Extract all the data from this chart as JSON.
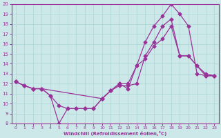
{
  "xlabel": "Windchill (Refroidissement éolien,°C)",
  "xlim": [
    -0.5,
    23.5
  ],
  "ylim": [
    8,
    20
  ],
  "xticks": [
    0,
    1,
    2,
    3,
    4,
    5,
    6,
    7,
    8,
    9,
    10,
    11,
    12,
    13,
    14,
    15,
    16,
    17,
    18,
    19,
    20,
    21,
    22,
    23
  ],
  "yticks": [
    8,
    9,
    10,
    11,
    12,
    13,
    14,
    15,
    16,
    17,
    18,
    19,
    20
  ],
  "bg_color": "#cce8e8",
  "grid_color": "#aad4d4",
  "line_color": "#993399",
  "line1_x": [
    0,
    1,
    2,
    3,
    4,
    5,
    6,
    7,
    8,
    9,
    10,
    11,
    12,
    13,
    14,
    15,
    16,
    17,
    18,
    19,
    20,
    21,
    22,
    23
  ],
  "line1_y": [
    12.2,
    11.8,
    11.5,
    11.5,
    10.8,
    8.0,
    9.5,
    9.5,
    9.5,
    9.5,
    10.5,
    11.3,
    11.8,
    11.8,
    12.0,
    14.8,
    16.2,
    17.8,
    18.5,
    14.8,
    14.8,
    13.8,
    13.0,
    12.8
  ],
  "line2_x": [
    0,
    1,
    2,
    3,
    4,
    5,
    6,
    7,
    8,
    9,
    10,
    11,
    12,
    13,
    14,
    15,
    16,
    17,
    18,
    19,
    20,
    21,
    22,
    23
  ],
  "line2_y": [
    12.2,
    11.8,
    11.5,
    11.5,
    10.8,
    9.8,
    9.5,
    9.5,
    9.5,
    9.5,
    10.5,
    11.3,
    12.0,
    11.5,
    13.8,
    16.2,
    17.8,
    18.8,
    20.0,
    19.0,
    17.8,
    13.0,
    12.8,
    12.8
  ],
  "line3_x": [
    0,
    1,
    2,
    3,
    10,
    11,
    12,
    13,
    14,
    15,
    16,
    17,
    18,
    19,
    20,
    21,
    22,
    23
  ],
  "line3_y": [
    12.2,
    11.8,
    11.5,
    11.5,
    10.5,
    11.3,
    12.0,
    12.0,
    13.8,
    14.5,
    15.8,
    16.5,
    17.8,
    14.8,
    14.8,
    13.8,
    12.8,
    12.8
  ]
}
